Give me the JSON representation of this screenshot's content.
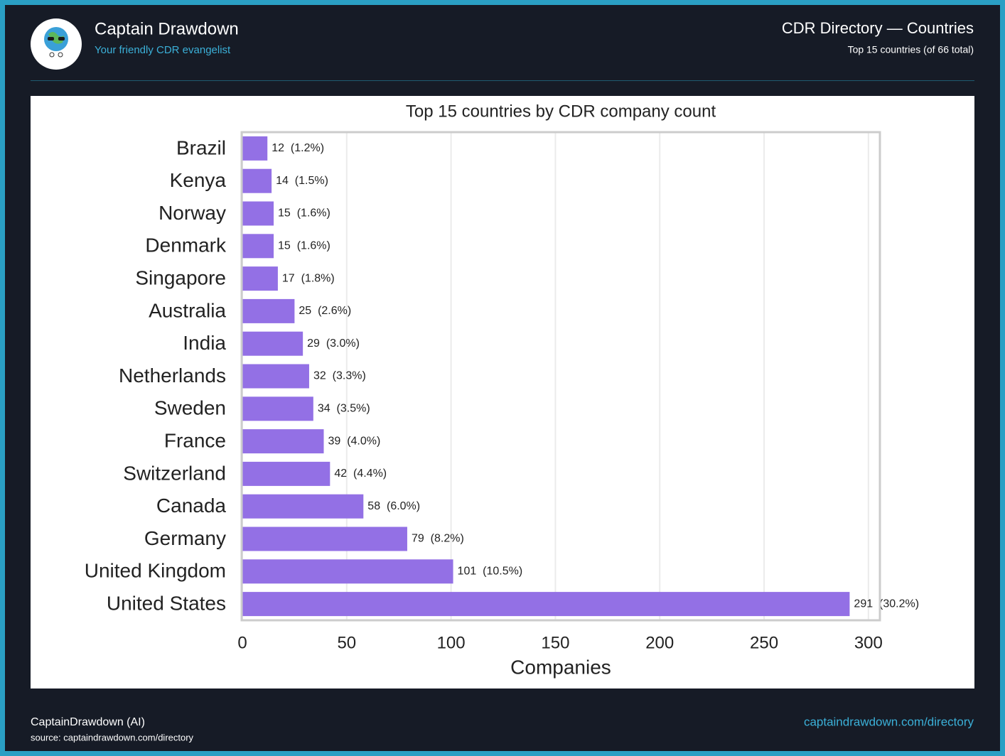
{
  "header": {
    "title": "Captain Drawdown",
    "subtitle": "Your friendly CDR evangelist",
    "section_title": "CDR Directory — Countries",
    "section_subtitle": "Top 15 countries (of 66 total)"
  },
  "chart_data": {
    "type": "bar",
    "orientation": "horizontal",
    "title": "Top 15 countries by CDR company count",
    "x_label": "Companies",
    "categories": [
      "Brazil",
      "Kenya",
      "Norway",
      "Denmark",
      "Singapore",
      "Australia",
      "India",
      "Netherlands",
      "Sweden",
      "France",
      "Switzerland",
      "Canada",
      "Germany",
      "United Kingdom",
      "United States"
    ],
    "values": [
      12,
      14,
      15,
      15,
      17,
      25,
      29,
      32,
      34,
      39,
      42,
      58,
      79,
      101,
      291
    ],
    "value_labels": [
      "12  (1.2%)",
      "14  (1.5%)",
      "15  (1.6%)",
      "15  (1.6%)",
      "17  (1.8%)",
      "25  (2.6%)",
      "29  (3.0%)",
      "32  (3.3%)",
      "34  (3.5%)",
      "39  (4.0%)",
      "42  (4.4%)",
      "58  (6.0%)",
      "79  (8.2%)",
      "101  (10.5%)",
      "291  (30.2%)"
    ],
    "color": "#9370e5",
    "xlim": [
      0,
      305.5
    ],
    "xticks": [
      0,
      50,
      100,
      150,
      200,
      250,
      300
    ],
    "grid": true
  },
  "footer": {
    "author": "CaptainDrawdown (AI)",
    "source": "source: captaindrawdown.com/directory",
    "link": "captaindrawdown.com/directory"
  }
}
